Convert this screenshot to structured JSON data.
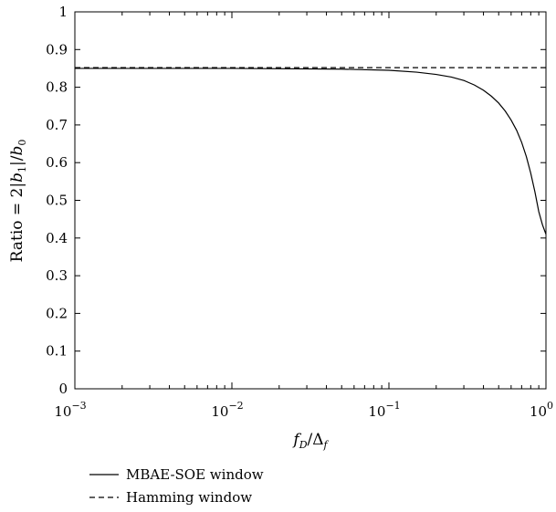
{
  "chart_data": {
    "type": "line",
    "xscale": "log",
    "xlim": [
      0.001,
      1
    ],
    "ylim": [
      0,
      1
    ],
    "grid": false,
    "xlabel": {
      "base": "f",
      "sub": "D",
      "sep": "/Δ",
      "sub2": "f"
    },
    "ylabel": {
      "prefix": "Ratio = 2|",
      "b1": "b",
      "b1_sub": "1",
      "mid": "|/",
      "b0": "b",
      "b0_sub": "0"
    },
    "xticks": [
      {
        "value": 0.001,
        "base": "10",
        "exp": "−3"
      },
      {
        "value": 0.01,
        "base": "10",
        "exp": "−2"
      },
      {
        "value": 0.1,
        "base": "10",
        "exp": "−1"
      },
      {
        "value": 1,
        "base": "10",
        "exp": "0"
      }
    ],
    "yticks": [
      {
        "value": 0,
        "label": "0"
      },
      {
        "value": 0.1,
        "label": "0.1"
      },
      {
        "value": 0.2,
        "label": "0.2"
      },
      {
        "value": 0.3,
        "label": "0.3"
      },
      {
        "value": 0.4,
        "label": "0.4"
      },
      {
        "value": 0.5,
        "label": "0.5"
      },
      {
        "value": 0.6,
        "label": "0.6"
      },
      {
        "value": 0.7,
        "label": "0.7"
      },
      {
        "value": 0.8,
        "label": "0.8"
      },
      {
        "value": 0.9,
        "label": "0.9"
      },
      {
        "value": 1,
        "label": "1"
      }
    ],
    "legend_position": "below",
    "series": [
      {
        "name": "MBAE-SOE window",
        "style": "solid",
        "x": [
          0.001,
          0.01,
          0.05,
          0.1,
          0.15,
          0.2,
          0.25,
          0.3,
          0.35,
          0.4,
          0.45,
          0.5,
          0.55,
          0.6,
          0.65,
          0.7,
          0.75,
          0.8,
          0.85,
          0.9,
          0.95,
          1.0
        ],
        "y": [
          0.85,
          0.85,
          0.848,
          0.845,
          0.84,
          0.834,
          0.827,
          0.818,
          0.806,
          0.792,
          0.776,
          0.758,
          0.737,
          0.713,
          0.686,
          0.654,
          0.616,
          0.572,
          0.523,
          0.47,
          0.435,
          0.41
        ]
      },
      {
        "name": "Hamming window",
        "style": "dashed",
        "x": [
          0.001,
          1
        ],
        "y": [
          0.852,
          0.852
        ]
      }
    ]
  }
}
